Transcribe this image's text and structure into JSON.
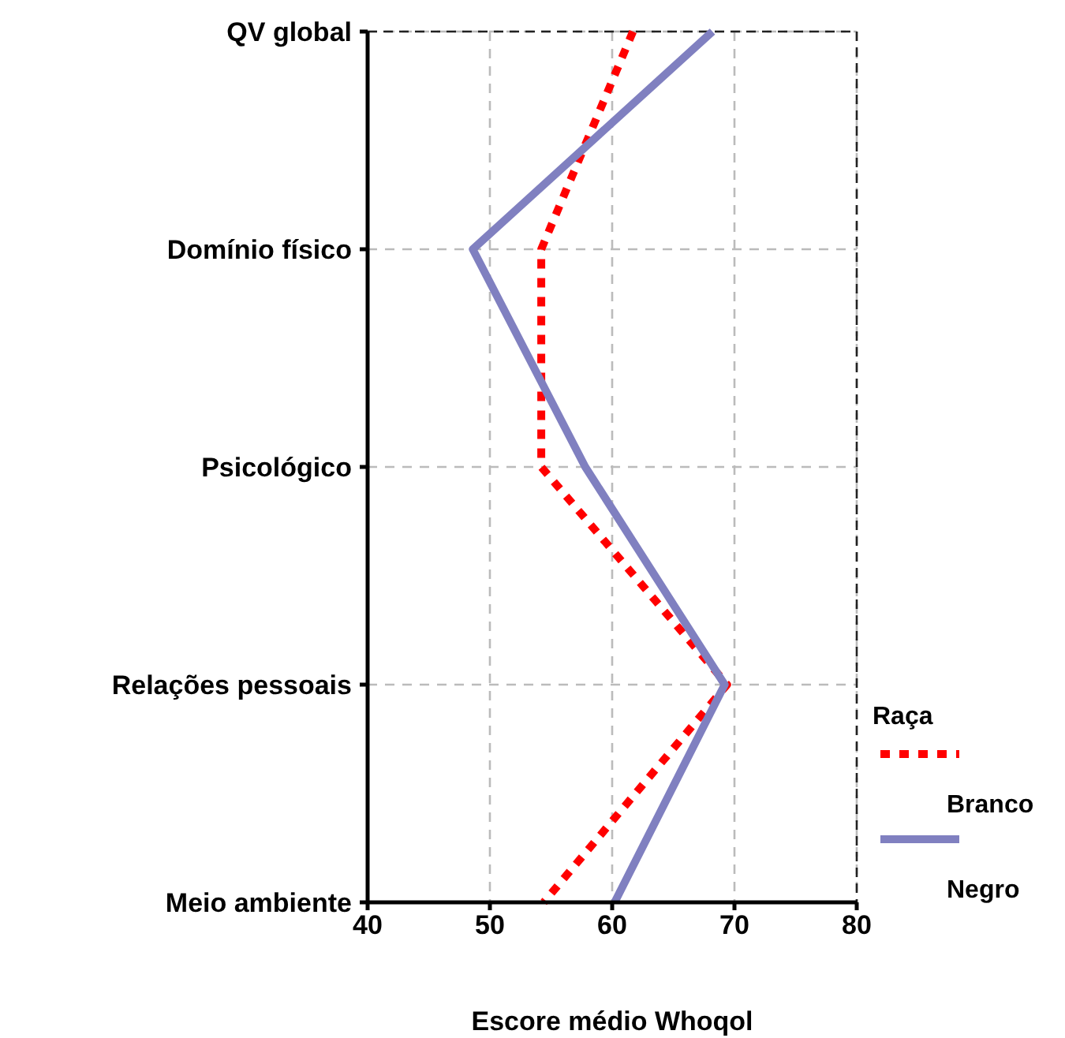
{
  "chart_data": {
    "type": "line",
    "orientation": "horizontal",
    "xlabel": "Escore médio Whoqol",
    "legend_title": "Raça",
    "legend": "bottom right",
    "categories": [
      "QV global",
      "Domínio físico",
      "Psicológico",
      "Relações pessoais",
      "Meio ambiente"
    ],
    "series": [
      {
        "name": "Branco",
        "color": "#ff0000",
        "line_style": "dotted",
        "values": [
          61.7,
          54.2,
          54.2,
          69.4,
          54.4
        ]
      },
      {
        "name": "Negro",
        "color": "#8080c0",
        "line_style": "solid",
        "values": [
          68.2,
          48.6,
          57.8,
          69.2,
          60.2
        ]
      }
    ],
    "xlim": [
      40,
      80
    ],
    "xticks": [
      40,
      50,
      60,
      70,
      80
    ],
    "grid": true
  }
}
